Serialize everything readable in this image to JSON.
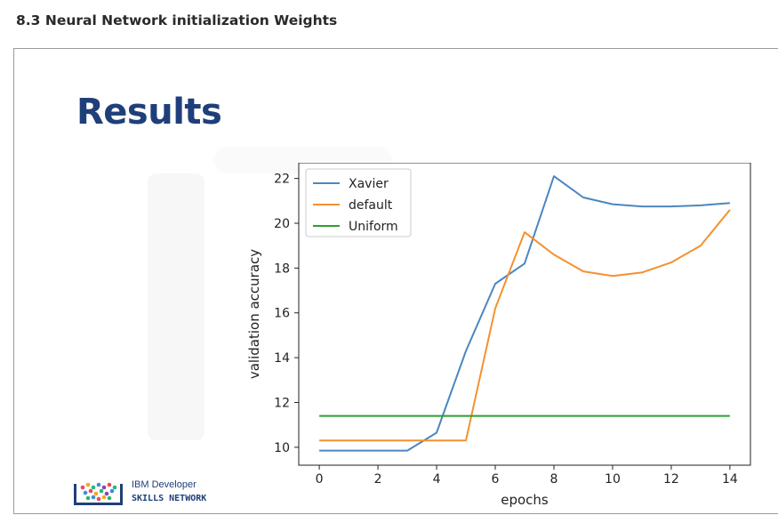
{
  "page": {
    "heading": "8.3 Neural Network initialization Weights"
  },
  "slide": {
    "title": "Results",
    "logo_line1": "IBM Developer",
    "logo_line2": "SKILLS NETWORK"
  },
  "chart_data": {
    "type": "line",
    "title": "",
    "xlabel": "epochs",
    "ylabel": "validation accuracy",
    "xlim": [
      -0.7,
      14.7
    ],
    "ylim": [
      9.2,
      22.7
    ],
    "xticks": [
      0,
      2,
      4,
      6,
      8,
      10,
      12,
      14
    ],
    "yticks": [
      10,
      12,
      14,
      16,
      18,
      20,
      22
    ],
    "legend_position": "top-left",
    "grid": false,
    "x": [
      0,
      1,
      2,
      3,
      4,
      5,
      6,
      7,
      8,
      9,
      10,
      11,
      12,
      13,
      14
    ],
    "series": [
      {
        "name": "Xavier",
        "color": "#4c86c0",
        "values": [
          9.85,
          9.85,
          9.85,
          9.85,
          10.65,
          14.3,
          17.3,
          18.2,
          22.1,
          21.15,
          20.85,
          20.75,
          20.75,
          20.8,
          20.9
        ]
      },
      {
        "name": "default",
        "color": "#f5902f",
        "values": [
          10.3,
          10.3,
          10.3,
          10.3,
          10.3,
          10.3,
          16.2,
          19.6,
          18.6,
          17.85,
          17.65,
          17.8,
          18.25,
          19.0,
          20.6
        ]
      },
      {
        "name": "Uniform",
        "color": "#2ca02c",
        "values": [
          11.4,
          11.4,
          11.4,
          11.4,
          11.4,
          11.4,
          11.4,
          11.4,
          11.4,
          11.4,
          11.4,
          11.4,
          11.4,
          11.4,
          11.4
        ]
      }
    ]
  }
}
